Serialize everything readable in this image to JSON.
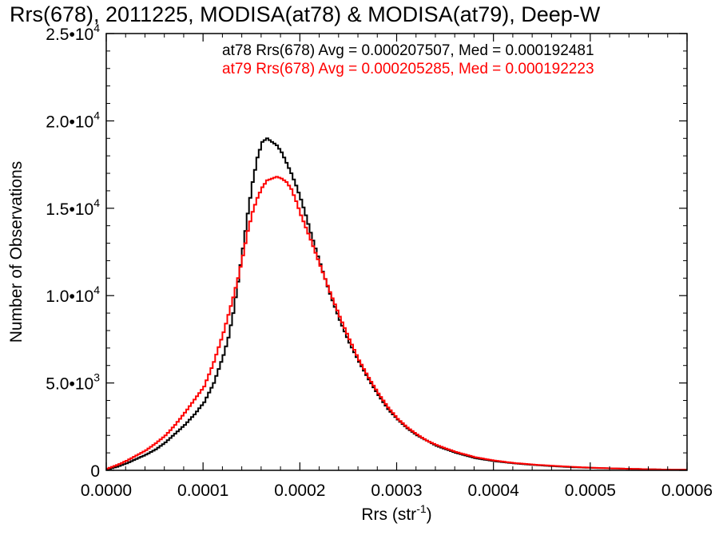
{
  "chart_data": {
    "type": "line",
    "title": "Rrs(678), 2011225, MODISA(at78) & MODISA(at79), Deep-W",
    "xlabel": {
      "base": "Rrs (str",
      "sup": "-1",
      "end": ")"
    },
    "ylabel": "Number of Observations",
    "xlim": [
      0.0,
      0.0006
    ],
    "ylim": [
      0,
      25000
    ],
    "x_ticks": [
      "0.0000",
      "0.0001",
      "0.0002",
      "0.0003",
      "0.0004",
      "0.0005",
      "0.0006"
    ],
    "y_ticks": [
      {
        "value": 0,
        "base": "0",
        "exp": ""
      },
      {
        "value": 5000,
        "base": "5.0•10",
        "exp": "3"
      },
      {
        "value": 10000,
        "base": "1.0•10",
        "exp": "4"
      },
      {
        "value": 15000,
        "base": "1.5•10",
        "exp": "4"
      },
      {
        "value": 20000,
        "base": "2.0•10",
        "exp": "4"
      },
      {
        "value": 25000,
        "base": "2.5•10",
        "exp": "4"
      }
    ],
    "annotations": [
      {
        "text": "at78 Rrs(678) Avg = 0.000207507, Med = 0.000192481",
        "color": "#000000"
      },
      {
        "text": "at79 Rrs(678) Avg = 0.000205285, Med = 0.000192223",
        "color": "#ff0000"
      }
    ],
    "series": [
      {
        "color": "#000000",
        "x": [
          0.0,
          1e-05,
          2e-05,
          3e-05,
          4e-05,
          5e-05,
          6e-05,
          7e-05,
          8e-05,
          9e-05,
          0.0001,
          0.00011,
          0.00012,
          0.000125,
          0.00013,
          0.000135,
          0.00014,
          0.000145,
          0.00015,
          0.000155,
          0.00016,
          0.000165,
          0.00017,
          0.000175,
          0.00018,
          0.000185,
          0.00019,
          0.000195,
          0.0002,
          0.000205,
          0.00021,
          0.00022,
          0.00023,
          0.00024,
          0.00025,
          0.00026,
          0.00027,
          0.00028,
          0.00029,
          0.0003,
          0.00031,
          0.00032,
          0.00033,
          0.00034,
          0.00035,
          0.00036,
          0.00037,
          0.00038,
          0.0004,
          0.00042,
          0.00044,
          0.00046,
          0.00048,
          0.0005,
          0.00052,
          0.00054,
          0.00056,
          0.00058,
          0.0006
        ],
        "y": [
          50,
          200,
          400,
          650,
          900,
          1200,
          1600,
          2100,
          2600,
          3200,
          3900,
          5000,
          6600,
          7600,
          9000,
          10800,
          12700,
          14700,
          16500,
          17900,
          18800,
          19000,
          18800,
          18600,
          18200,
          17600,
          17000,
          16300,
          15500,
          14600,
          13600,
          11800,
          10100,
          8600,
          7300,
          6200,
          5200,
          4300,
          3500,
          2900,
          2400,
          2000,
          1700,
          1400,
          1200,
          1000,
          850,
          700,
          520,
          400,
          310,
          240,
          180,
          140,
          110,
          85,
          60,
          40,
          30
        ]
      },
      {
        "color": "#ff0000",
        "x": [
          0.0,
          1e-05,
          2e-05,
          3e-05,
          4e-05,
          5e-05,
          6e-05,
          7e-05,
          8e-05,
          9e-05,
          0.0001,
          0.00011,
          0.00012,
          0.000125,
          0.00013,
          0.000135,
          0.00014,
          0.000145,
          0.00015,
          0.000155,
          0.00016,
          0.000165,
          0.00017,
          0.000175,
          0.00018,
          0.000185,
          0.00019,
          0.000195,
          0.0002,
          0.000205,
          0.00021,
          0.00022,
          0.00023,
          0.00024,
          0.00025,
          0.00026,
          0.00027,
          0.00028,
          0.00029,
          0.0003,
          0.00031,
          0.00032,
          0.00033,
          0.00034,
          0.00035,
          0.00036,
          0.00037,
          0.00038,
          0.0004,
          0.00042,
          0.00044,
          0.00046,
          0.00048,
          0.0005,
          0.00052,
          0.00054,
          0.00056,
          0.00058,
          0.0006
        ],
        "y": [
          100,
          300,
          550,
          850,
          1150,
          1550,
          2000,
          2600,
          3300,
          4050,
          4800,
          6200,
          7900,
          8900,
          9900,
          11000,
          12300,
          13700,
          14800,
          15600,
          16200,
          16600,
          16700,
          16800,
          16700,
          16500,
          16100,
          15400,
          14600,
          13900,
          13200,
          11700,
          10200,
          8800,
          7500,
          6300,
          5300,
          4400,
          3600,
          2950,
          2450,
          2050,
          1700,
          1450,
          1250,
          1050,
          900,
          750,
          560,
          420,
          330,
          260,
          200,
          150,
          115,
          85,
          60,
          40,
          30
        ]
      }
    ]
  }
}
